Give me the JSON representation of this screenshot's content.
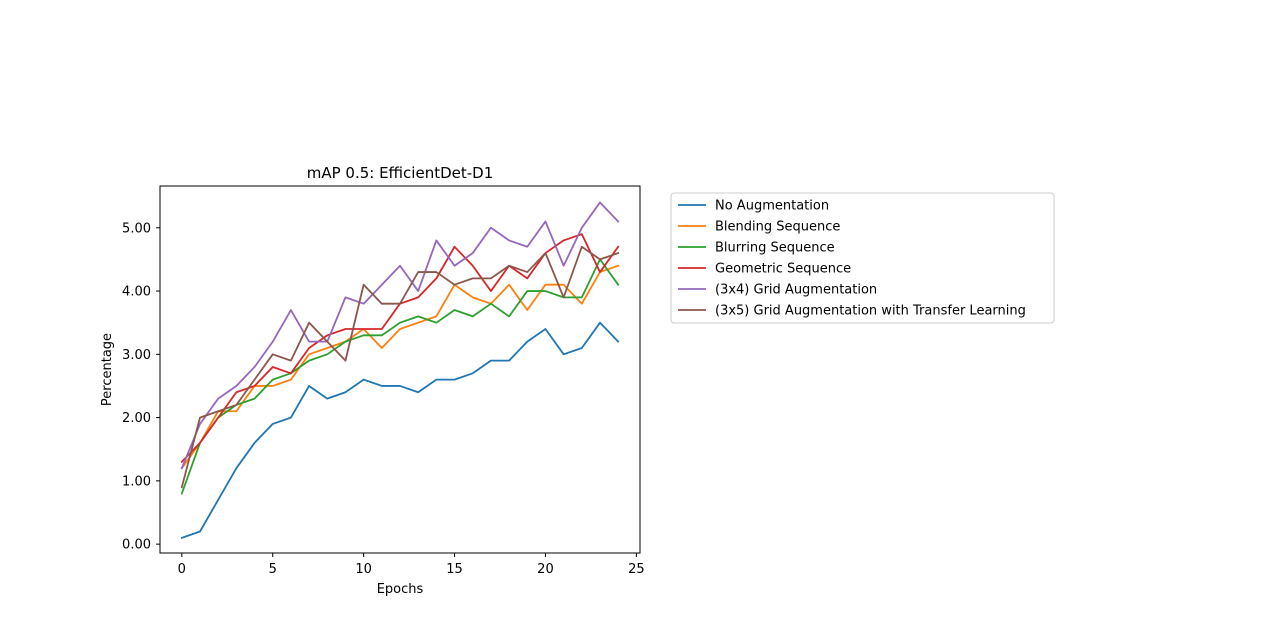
{
  "chart_data": {
    "type": "line",
    "title": "mAP 0.5: EfficientDet-D1",
    "xlabel": "Epochs",
    "ylabel": "Percentage",
    "xlim": [
      -1.2,
      25.2
    ],
    "ylim": [
      -0.14,
      5.66
    ],
    "xticks": [
      0,
      5,
      10,
      15,
      20,
      25
    ],
    "xtick_labels": [
      "0",
      "5",
      "10",
      "15",
      "20",
      "25"
    ],
    "yticks": [
      0,
      1,
      2,
      3,
      4,
      5
    ],
    "ytick_labels": [
      "0.00",
      "1.00",
      "2.00",
      "3.00",
      "4.00",
      "5.00"
    ],
    "grid": false,
    "legend_position": "outside-right-top",
    "x": [
      0,
      1,
      2,
      3,
      4,
      5,
      6,
      7,
      8,
      9,
      10,
      11,
      12,
      13,
      14,
      15,
      16,
      17,
      18,
      19,
      20,
      21,
      22,
      23,
      24
    ],
    "series": [
      {
        "name": "No Augmentation",
        "color": "#1f77b4",
        "values": [
          0.1,
          0.2,
          0.7,
          1.2,
          1.6,
          1.9,
          2.0,
          2.5,
          2.3,
          2.4,
          2.6,
          2.5,
          2.5,
          2.4,
          2.6,
          2.6,
          2.7,
          2.9,
          2.9,
          3.2,
          3.4,
          3.0,
          3.1,
          3.5,
          3.2
        ]
      },
      {
        "name": "Blending Sequence",
        "color": "#ff7f0e",
        "values": [
          1.2,
          1.6,
          2.1,
          2.1,
          2.5,
          2.5,
          2.6,
          3.0,
          3.1,
          3.2,
          3.4,
          3.1,
          3.4,
          3.5,
          3.6,
          4.1,
          3.9,
          3.8,
          4.1,
          3.7,
          4.1,
          4.1,
          3.8,
          4.3,
          4.4
        ]
      },
      {
        "name": "Blurring Sequence",
        "color": "#2ca02c",
        "values": [
          0.8,
          1.6,
          2.0,
          2.2,
          2.3,
          2.6,
          2.7,
          2.9,
          3.0,
          3.2,
          3.3,
          3.3,
          3.5,
          3.6,
          3.5,
          3.7,
          3.6,
          3.8,
          3.6,
          4.0,
          4.0,
          3.9,
          3.9,
          4.5,
          4.1
        ]
      },
      {
        "name": "Geometric Sequence",
        "color": "#d62728",
        "values": [
          1.3,
          1.6,
          2.0,
          2.4,
          2.5,
          2.8,
          2.7,
          3.1,
          3.3,
          3.4,
          3.4,
          3.4,
          3.8,
          3.9,
          4.2,
          4.7,
          4.4,
          4.0,
          4.4,
          4.2,
          4.6,
          4.8,
          4.9,
          4.3,
          4.7
        ]
      },
      {
        "name": "(3x4) Grid Augmentation",
        "color": "#9467bd",
        "values": [
          1.2,
          1.9,
          2.3,
          2.5,
          2.8,
          3.2,
          3.7,
          3.2,
          3.2,
          3.9,
          3.8,
          4.1,
          4.4,
          4.0,
          4.8,
          4.4,
          4.6,
          5.0,
          4.8,
          4.7,
          5.1,
          4.4,
          5.0,
          5.4,
          5.1
        ]
      },
      {
        "name": "(3x5) Grid Augmentation with Transfer Learning",
        "color": "#8c564b",
        "values": [
          0.9,
          2.0,
          2.1,
          2.2,
          2.6,
          3.0,
          2.9,
          3.5,
          3.2,
          2.9,
          4.1,
          3.8,
          3.8,
          4.3,
          4.3,
          4.1,
          4.2,
          4.2,
          4.4,
          4.3,
          4.6,
          3.9,
          4.7,
          4.5,
          4.6
        ]
      }
    ]
  }
}
